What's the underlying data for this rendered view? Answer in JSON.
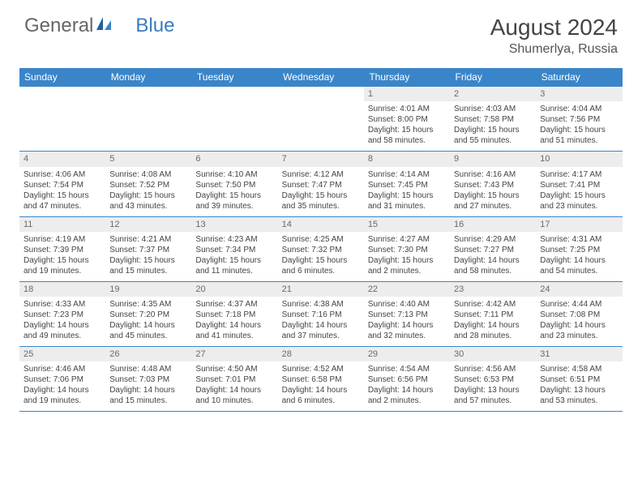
{
  "brand": {
    "part1": "General",
    "part2": "Blue"
  },
  "title": "August 2024",
  "location": "Shumerlya, Russia",
  "colors": {
    "header_bg": "#3a85c9",
    "header_text": "#ffffff",
    "daynum_bg": "#ededed",
    "border": "#3a85c9",
    "text": "#444444"
  },
  "weekday_labels": [
    "Sunday",
    "Monday",
    "Tuesday",
    "Wednesday",
    "Thursday",
    "Friday",
    "Saturday"
  ],
  "weeks": [
    {
      "nums": [
        "",
        "",
        "",
        "",
        "1",
        "2",
        "3"
      ],
      "cells": [
        null,
        null,
        null,
        null,
        {
          "sunrise": "Sunrise: 4:01 AM",
          "sunset": "Sunset: 8:00 PM",
          "daylight": "Daylight: 15 hours and 58 minutes."
        },
        {
          "sunrise": "Sunrise: 4:03 AM",
          "sunset": "Sunset: 7:58 PM",
          "daylight": "Daylight: 15 hours and 55 minutes."
        },
        {
          "sunrise": "Sunrise: 4:04 AM",
          "sunset": "Sunset: 7:56 PM",
          "daylight": "Daylight: 15 hours and 51 minutes."
        }
      ]
    },
    {
      "nums": [
        "4",
        "5",
        "6",
        "7",
        "8",
        "9",
        "10"
      ],
      "cells": [
        {
          "sunrise": "Sunrise: 4:06 AM",
          "sunset": "Sunset: 7:54 PM",
          "daylight": "Daylight: 15 hours and 47 minutes."
        },
        {
          "sunrise": "Sunrise: 4:08 AM",
          "sunset": "Sunset: 7:52 PM",
          "daylight": "Daylight: 15 hours and 43 minutes."
        },
        {
          "sunrise": "Sunrise: 4:10 AM",
          "sunset": "Sunset: 7:50 PM",
          "daylight": "Daylight: 15 hours and 39 minutes."
        },
        {
          "sunrise": "Sunrise: 4:12 AM",
          "sunset": "Sunset: 7:47 PM",
          "daylight": "Daylight: 15 hours and 35 minutes."
        },
        {
          "sunrise": "Sunrise: 4:14 AM",
          "sunset": "Sunset: 7:45 PM",
          "daylight": "Daylight: 15 hours and 31 minutes."
        },
        {
          "sunrise": "Sunrise: 4:16 AM",
          "sunset": "Sunset: 7:43 PM",
          "daylight": "Daylight: 15 hours and 27 minutes."
        },
        {
          "sunrise": "Sunrise: 4:17 AM",
          "sunset": "Sunset: 7:41 PM",
          "daylight": "Daylight: 15 hours and 23 minutes."
        }
      ]
    },
    {
      "nums": [
        "11",
        "12",
        "13",
        "14",
        "15",
        "16",
        "17"
      ],
      "cells": [
        {
          "sunrise": "Sunrise: 4:19 AM",
          "sunset": "Sunset: 7:39 PM",
          "daylight": "Daylight: 15 hours and 19 minutes."
        },
        {
          "sunrise": "Sunrise: 4:21 AM",
          "sunset": "Sunset: 7:37 PM",
          "daylight": "Daylight: 15 hours and 15 minutes."
        },
        {
          "sunrise": "Sunrise: 4:23 AM",
          "sunset": "Sunset: 7:34 PM",
          "daylight": "Daylight: 15 hours and 11 minutes."
        },
        {
          "sunrise": "Sunrise: 4:25 AM",
          "sunset": "Sunset: 7:32 PM",
          "daylight": "Daylight: 15 hours and 6 minutes."
        },
        {
          "sunrise": "Sunrise: 4:27 AM",
          "sunset": "Sunset: 7:30 PM",
          "daylight": "Daylight: 15 hours and 2 minutes."
        },
        {
          "sunrise": "Sunrise: 4:29 AM",
          "sunset": "Sunset: 7:27 PM",
          "daylight": "Daylight: 14 hours and 58 minutes."
        },
        {
          "sunrise": "Sunrise: 4:31 AM",
          "sunset": "Sunset: 7:25 PM",
          "daylight": "Daylight: 14 hours and 54 minutes."
        }
      ]
    },
    {
      "nums": [
        "18",
        "19",
        "20",
        "21",
        "22",
        "23",
        "24"
      ],
      "cells": [
        {
          "sunrise": "Sunrise: 4:33 AM",
          "sunset": "Sunset: 7:23 PM",
          "daylight": "Daylight: 14 hours and 49 minutes."
        },
        {
          "sunrise": "Sunrise: 4:35 AM",
          "sunset": "Sunset: 7:20 PM",
          "daylight": "Daylight: 14 hours and 45 minutes."
        },
        {
          "sunrise": "Sunrise: 4:37 AM",
          "sunset": "Sunset: 7:18 PM",
          "daylight": "Daylight: 14 hours and 41 minutes."
        },
        {
          "sunrise": "Sunrise: 4:38 AM",
          "sunset": "Sunset: 7:16 PM",
          "daylight": "Daylight: 14 hours and 37 minutes."
        },
        {
          "sunrise": "Sunrise: 4:40 AM",
          "sunset": "Sunset: 7:13 PM",
          "daylight": "Daylight: 14 hours and 32 minutes."
        },
        {
          "sunrise": "Sunrise: 4:42 AM",
          "sunset": "Sunset: 7:11 PM",
          "daylight": "Daylight: 14 hours and 28 minutes."
        },
        {
          "sunrise": "Sunrise: 4:44 AM",
          "sunset": "Sunset: 7:08 PM",
          "daylight": "Daylight: 14 hours and 23 minutes."
        }
      ]
    },
    {
      "nums": [
        "25",
        "26",
        "27",
        "28",
        "29",
        "30",
        "31"
      ],
      "cells": [
        {
          "sunrise": "Sunrise: 4:46 AM",
          "sunset": "Sunset: 7:06 PM",
          "daylight": "Daylight: 14 hours and 19 minutes."
        },
        {
          "sunrise": "Sunrise: 4:48 AM",
          "sunset": "Sunset: 7:03 PM",
          "daylight": "Daylight: 14 hours and 15 minutes."
        },
        {
          "sunrise": "Sunrise: 4:50 AM",
          "sunset": "Sunset: 7:01 PM",
          "daylight": "Daylight: 14 hours and 10 minutes."
        },
        {
          "sunrise": "Sunrise: 4:52 AM",
          "sunset": "Sunset: 6:58 PM",
          "daylight": "Daylight: 14 hours and 6 minutes."
        },
        {
          "sunrise": "Sunrise: 4:54 AM",
          "sunset": "Sunset: 6:56 PM",
          "daylight": "Daylight: 14 hours and 2 minutes."
        },
        {
          "sunrise": "Sunrise: 4:56 AM",
          "sunset": "Sunset: 6:53 PM",
          "daylight": "Daylight: 13 hours and 57 minutes."
        },
        {
          "sunrise": "Sunrise: 4:58 AM",
          "sunset": "Sunset: 6:51 PM",
          "daylight": "Daylight: 13 hours and 53 minutes."
        }
      ]
    }
  ]
}
